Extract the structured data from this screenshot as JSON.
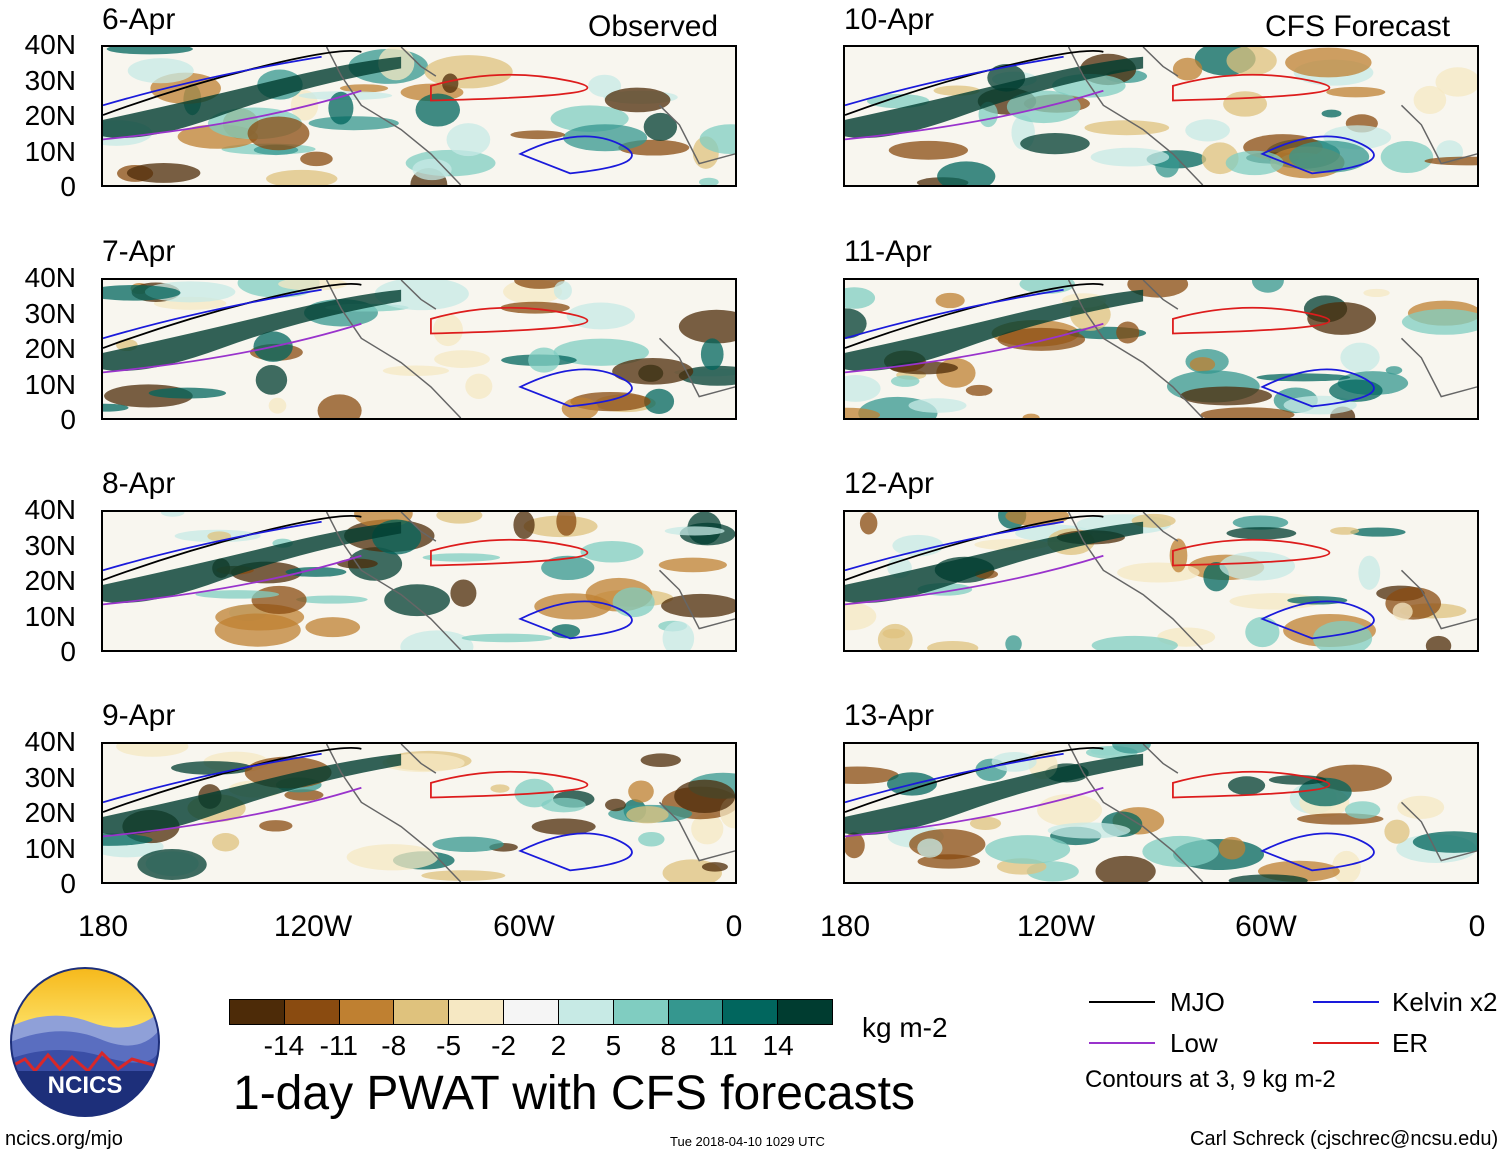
{
  "columns": {
    "observed": "Observed",
    "forecast": "CFS Forecast"
  },
  "panels_left": [
    {
      "date": "6-Apr"
    },
    {
      "date": "7-Apr"
    },
    {
      "date": "8-Apr"
    },
    {
      "date": "9-Apr"
    }
  ],
  "panels_right": [
    {
      "date": "10-Apr"
    },
    {
      "date": "11-Apr"
    },
    {
      "date": "12-Apr"
    },
    {
      "date": "13-Apr"
    }
  ],
  "lat_labels": [
    "40N",
    "30N",
    "20N",
    "10N",
    "0"
  ],
  "lon_labels": [
    "180",
    "120W",
    "60W",
    "0"
  ],
  "colorbar": {
    "colors": [
      "#4d2b08",
      "#8a4b10",
      "#bf8031",
      "#dfc27d",
      "#f6e8c3",
      "#f5f5f5",
      "#c7eae5",
      "#80cdc1",
      "#35978f",
      "#01665e",
      "#003c30"
    ],
    "ticks": [
      "-14",
      "-11",
      "-8",
      "-5",
      "-2",
      "2",
      "5",
      "8",
      "11",
      "14"
    ],
    "units": "kg m-2"
  },
  "title": "1-day PWAT with CFS forecasts",
  "legend": [
    {
      "label": "MJO",
      "color": "#000000"
    },
    {
      "label": "Kelvin x2",
      "color": "#1a1adb"
    },
    {
      "label": "Low",
      "color": "#9933cc"
    },
    {
      "label": "ER",
      "color": "#dd1c1c"
    }
  ],
  "contour_note": "Contours at 3, 9 kg m-2",
  "footer": {
    "website": "ncics.org/mjo",
    "timestamp": "Tue 2018-04-10 1029 UTC",
    "credit": "Carl Schreck (cjschrec@ncsu.edu)"
  },
  "logo_text": "NCICS"
}
